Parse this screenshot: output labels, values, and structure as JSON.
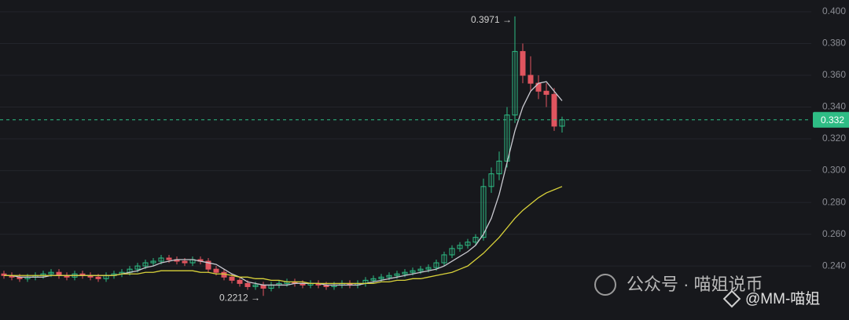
{
  "chart_data": {
    "type": "candlestick",
    "open": [
      0.235,
      0.234,
      0.233,
      0.232,
      0.233,
      0.234,
      0.235,
      0.236,
      0.234,
      0.233,
      0.235,
      0.234,
      0.233,
      0.232,
      0.234,
      0.235,
      0.236,
      0.238,
      0.24,
      0.242,
      0.243,
      0.245,
      0.244,
      0.243,
      0.242,
      0.244,
      0.243,
      0.238,
      0.236,
      0.233,
      0.231,
      0.229,
      0.227,
      0.228,
      0.226,
      0.228,
      0.229,
      0.23,
      0.229,
      0.228,
      0.229,
      0.228,
      0.227,
      0.228,
      0.229,
      0.228,
      0.229,
      0.231,
      0.232,
      0.233,
      0.234,
      0.235,
      0.236,
      0.237,
      0.238,
      0.239,
      0.242,
      0.247,
      0.251,
      0.253,
      0.255,
      0.258,
      0.29,
      0.298,
      0.306,
      0.335,
      0.375,
      0.36,
      0.355,
      0.35,
      0.348,
      0.328
    ],
    "high": [
      0.237,
      0.236,
      0.235,
      0.235,
      0.236,
      0.237,
      0.238,
      0.238,
      0.236,
      0.237,
      0.237,
      0.236,
      0.235,
      0.236,
      0.237,
      0.238,
      0.24,
      0.242,
      0.244,
      0.245,
      0.247,
      0.247,
      0.246,
      0.245,
      0.246,
      0.246,
      0.245,
      0.24,
      0.238,
      0.235,
      0.233,
      0.231,
      0.23,
      0.23,
      0.23,
      0.231,
      0.232,
      0.232,
      0.231,
      0.231,
      0.231,
      0.23,
      0.23,
      0.231,
      0.231,
      0.231,
      0.233,
      0.234,
      0.235,
      0.236,
      0.237,
      0.238,
      0.239,
      0.24,
      0.241,
      0.244,
      0.249,
      0.253,
      0.255,
      0.257,
      0.26,
      0.295,
      0.302,
      0.312,
      0.34,
      0.3971,
      0.38,
      0.372,
      0.36,
      0.355,
      0.352,
      0.334
    ],
    "low": [
      0.232,
      0.231,
      0.23,
      0.23,
      0.231,
      0.232,
      0.233,
      0.232,
      0.231,
      0.231,
      0.232,
      0.231,
      0.23,
      0.23,
      0.232,
      0.233,
      0.234,
      0.236,
      0.238,
      0.24,
      0.241,
      0.242,
      0.241,
      0.24,
      0.24,
      0.241,
      0.236,
      0.234,
      0.231,
      0.229,
      0.227,
      0.225,
      0.225,
      0.2212,
      0.224,
      0.226,
      0.227,
      0.227,
      0.226,
      0.226,
      0.226,
      0.225,
      0.225,
      0.226,
      0.226,
      0.226,
      0.227,
      0.229,
      0.23,
      0.231,
      0.232,
      0.233,
      0.234,
      0.235,
      0.236,
      0.237,
      0.24,
      0.245,
      0.249,
      0.251,
      0.253,
      0.256,
      0.286,
      0.294,
      0.302,
      0.33,
      0.355,
      0.35,
      0.345,
      0.34,
      0.325,
      0.324
    ],
    "close": [
      0.234,
      0.233,
      0.232,
      0.233,
      0.234,
      0.235,
      0.236,
      0.234,
      0.233,
      0.235,
      0.234,
      0.233,
      0.232,
      0.234,
      0.235,
      0.236,
      0.238,
      0.24,
      0.242,
      0.243,
      0.245,
      0.244,
      0.243,
      0.242,
      0.244,
      0.243,
      0.238,
      0.236,
      0.233,
      0.231,
      0.229,
      0.227,
      0.228,
      0.226,
      0.228,
      0.229,
      0.23,
      0.229,
      0.228,
      0.229,
      0.228,
      0.227,
      0.228,
      0.229,
      0.228,
      0.229,
      0.231,
      0.232,
      0.233,
      0.234,
      0.235,
      0.236,
      0.237,
      0.238,
      0.239,
      0.242,
      0.247,
      0.251,
      0.253,
      0.255,
      0.258,
      0.29,
      0.298,
      0.306,
      0.335,
      0.375,
      0.36,
      0.355,
      0.35,
      0.348,
      0.328,
      0.332
    ],
    "up_color": "#2ebd85",
    "down_color": "#e0555f",
    "series": [
      {
        "color": "#c9c9d0",
        "values": [
          0.234,
          0.234,
          0.233,
          0.233,
          0.233,
          0.233,
          0.234,
          0.234,
          0.234,
          0.234,
          0.234,
          0.234,
          0.234,
          0.234,
          0.234,
          0.235,
          0.236,
          0.237,
          0.239,
          0.24,
          0.242,
          0.243,
          0.244,
          0.244,
          0.244,
          0.243,
          0.242,
          0.241,
          0.238,
          0.235,
          0.233,
          0.23,
          0.229,
          0.228,
          0.228,
          0.228,
          0.228,
          0.229,
          0.229,
          0.229,
          0.229,
          0.228,
          0.228,
          0.228,
          0.228,
          0.228,
          0.229,
          0.23,
          0.231,
          0.232,
          0.233,
          0.234,
          0.235,
          0.236,
          0.237,
          0.238,
          0.24,
          0.243,
          0.246,
          0.249,
          0.253,
          0.26,
          0.27,
          0.285,
          0.305,
          0.325,
          0.34,
          0.35,
          0.355,
          0.356,
          0.35,
          0.344
        ]
      },
      {
        "color": "#d9d23a",
        "values": [
          0.234,
          0.234,
          0.234,
          0.234,
          0.234,
          0.234,
          0.234,
          0.234,
          0.234,
          0.234,
          0.234,
          0.234,
          0.234,
          0.234,
          0.234,
          0.235,
          0.235,
          0.235,
          0.236,
          0.236,
          0.237,
          0.237,
          0.237,
          0.237,
          0.237,
          0.236,
          0.236,
          0.235,
          0.235,
          0.234,
          0.233,
          0.233,
          0.232,
          0.232,
          0.231,
          0.231,
          0.23,
          0.23,
          0.23,
          0.229,
          0.229,
          0.229,
          0.229,
          0.229,
          0.229,
          0.229,
          0.229,
          0.229,
          0.23,
          0.23,
          0.231,
          0.231,
          0.232,
          0.232,
          0.233,
          0.234,
          0.235,
          0.236,
          0.238,
          0.24,
          0.244,
          0.248,
          0.253,
          0.258,
          0.264,
          0.27,
          0.275,
          0.279,
          0.283,
          0.286,
          0.288,
          0.29
        ]
      }
    ],
    "ylim": [
      0.206,
      0.4074
    ],
    "yticks": [
      {
        "value": 0.4,
        "label": "0.400"
      },
      {
        "value": 0.38,
        "label": "0.380"
      },
      {
        "value": 0.36,
        "label": "0.360"
      },
      {
        "value": 0.34,
        "label": "0.340"
      },
      {
        "value": 0.32,
        "label": "0.320"
      },
      {
        "value": 0.3,
        "label": "0.300"
      },
      {
        "value": 0.28,
        "label": "0.280"
      },
      {
        "value": 0.26,
        "label": "0.260"
      },
      {
        "value": 0.24,
        "label": "0.240"
      }
    ],
    "grid": true,
    "current_price": {
      "value": 0.332,
      "label": "0.332"
    },
    "max_annotation": {
      "value": 0.3971,
      "label": "0.3971 →"
    },
    "min_annotation": {
      "value": 0.2212,
      "label": "0.2212 →"
    },
    "watermark": [
      "公众号 · 喵姐说币",
      "@MM-喵姐"
    ]
  }
}
